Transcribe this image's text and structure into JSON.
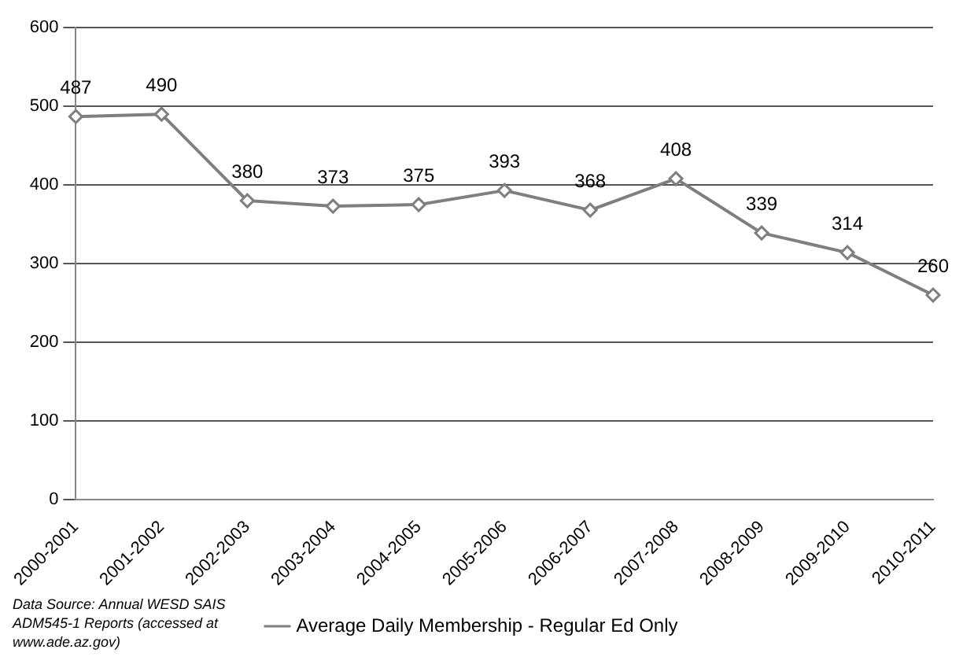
{
  "chart_data": {
    "type": "line",
    "categories": [
      "2000-2001",
      "2001-2002",
      "2002-2003",
      "2003-2004",
      "2004-2005",
      "2005-2006",
      "2006-2007",
      "2007-2008",
      "2008-2009",
      "2009-2010",
      "2010-2011"
    ],
    "series": [
      {
        "name": "Average Daily Membership - Regular Ed Only",
        "color": "#7f7f7f",
        "values": [
          487,
          490,
          380,
          373,
          375,
          393,
          368,
          408,
          339,
          314,
          260
        ]
      }
    ],
    "ylim": [
      0,
      600
    ],
    "yticks": [
      0,
      100,
      200,
      300,
      400,
      500,
      600
    ],
    "grid": "y",
    "legend": "bottom",
    "marker": "diamond",
    "line_style": "solid",
    "data_labels": true,
    "annotations": [
      "Data Source:  Annual WESD SAIS ADM545-1 Reports  (accessed at www.ade.az.gov)"
    ]
  }
}
